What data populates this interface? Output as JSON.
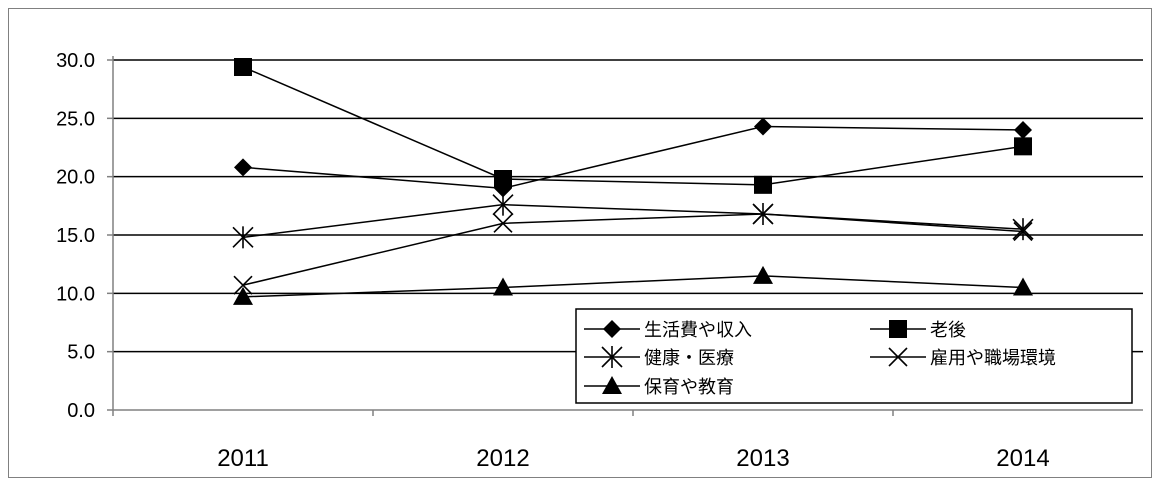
{
  "chart_data": {
    "type": "line",
    "categories": [
      "2011",
      "2012",
      "2013",
      "2014"
    ],
    "ylim": [
      0,
      30
    ],
    "y_ticks": [
      "0.0",
      "5.0",
      "10.0",
      "15.0",
      "20.0",
      "25.0",
      "30.0"
    ],
    "grid": "horizontal",
    "legend_position": "lower-right",
    "series": [
      {
        "name": "生活費や収入",
        "marker": "diamond",
        "values": [
          20.8,
          19.0,
          24.3,
          24.0
        ]
      },
      {
        "name": "老後",
        "marker": "square",
        "values": [
          29.4,
          19.8,
          19.3,
          22.6
        ]
      },
      {
        "name": "健康・医療",
        "marker": "asterisk",
        "values": [
          14.8,
          17.6,
          16.8,
          15.5
        ]
      },
      {
        "name": "雇用や職場環境",
        "marker": "x",
        "values": [
          10.7,
          16.0,
          16.8,
          15.3
        ]
      },
      {
        "name": "保育や教育",
        "marker": "triangle",
        "values": [
          9.7,
          10.5,
          11.5,
          10.5
        ]
      }
    ],
    "colors": {
      "line": "#000000",
      "grid": "#000000",
      "axis": "#808080"
    }
  }
}
